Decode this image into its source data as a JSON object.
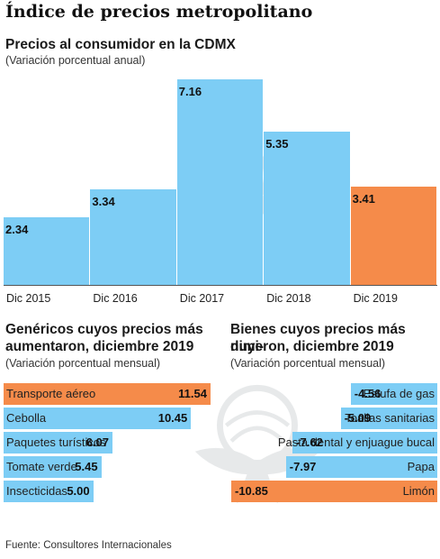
{
  "title": "Índice de precios metropolitano",
  "colors": {
    "blue": "#7dcdf5",
    "orange": "#f58b4a",
    "watermark": "#bfc4c8"
  },
  "icons": {
    "watermark": "eagle-seal-icon"
  },
  "top_chart": {
    "subtitle": "Precios al consumidor en la CDMX",
    "note": "(Variación porcentual anual)"
  },
  "left_chart": {
    "subtitle_line1": "Genéricos cuyos precios más",
    "subtitle_line2": "aumentaron, diciembre 2019",
    "note": "(Variación porcentual mensual)"
  },
  "right_chart": {
    "subtitle_line1": "Bienes cuyos precios más dimi-",
    "subtitle_line2": "nuyeron, diciembre 2019",
    "note": "(Variación porcentual mensual)"
  },
  "source": "Fuente: Consultores Internacionales",
  "chart_data": [
    {
      "type": "bar",
      "title": "Precios al consumidor en la CDMX",
      "categories": [
        "Dic 2015",
        "Dic 2016",
        "Dic 2017",
        "Dic 2018",
        "Dic 2019"
      ],
      "values": [
        2.34,
        3.34,
        7.16,
        5.35,
        3.41
      ],
      "value_labels": [
        "2.34",
        "3.34",
        "7.16",
        "5.35",
        "3.41"
      ],
      "highlight_index": 4,
      "ylim": [
        0,
        7.16
      ]
    },
    {
      "type": "bar",
      "orientation": "horizontal",
      "title": "Genéricos cuyos precios más aumentaron, diciembre 2019",
      "categories": [
        "Transporte aéreo",
        "Cebolla",
        "Paquetes turísticos",
        "Tomate verde",
        "Insecticidas"
      ],
      "values": [
        11.54,
        10.45,
        6.07,
        5.45,
        5.0
      ],
      "value_labels": [
        "11.54",
        "10.45",
        "6.07",
        "5.45",
        "5.00"
      ],
      "highlight_index": 0,
      "xlim": [
        0,
        11.54
      ]
    },
    {
      "type": "bar",
      "orientation": "horizontal",
      "title": "Bienes cuyos precios más disminuyeron, diciembre 2019",
      "categories": [
        "Estufa de gas",
        "Toallas sanitarias",
        "Pasta dental y enjuague bucal",
        "Papa",
        "Limón"
      ],
      "values": [
        -4.56,
        -5.09,
        -7.62,
        -7.97,
        -10.85
      ],
      "value_labels": [
        "-4.56",
        "-5.09",
        "-7.62",
        "-7.97",
        "-10.85"
      ],
      "highlight_index": 4,
      "xlim": [
        -10.85,
        0
      ]
    }
  ]
}
